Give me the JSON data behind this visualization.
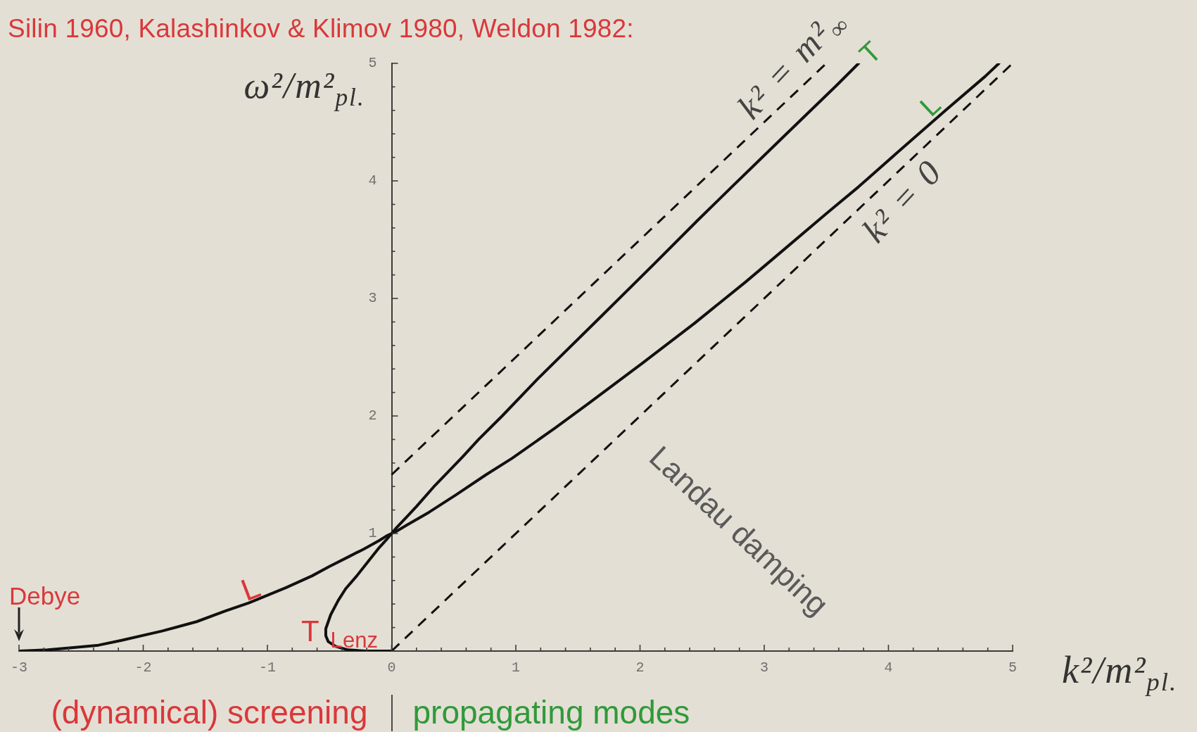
{
  "chart_data": {
    "type": "line",
    "title": "Silin 1960, Kalashinkov & Klimov 1980, Weldon 1982:",
    "xlabel": "k²/m²$_{pl.}$",
    "ylabel": "ω²/m²$_{pl.}$",
    "xlim": [
      -3,
      5
    ],
    "ylim": [
      0,
      5
    ],
    "xticks": [
      -3,
      {
        "value": -2.8,
        "label": null
      },
      {
        "value": -2.6,
        "label": null
      },
      {
        "value": -2.4,
        "label": null
      },
      {
        "value": -2.2,
        "label": null
      },
      -2,
      {
        "value": -1.8,
        "label": null
      },
      {
        "value": -1.6,
        "label": null
      },
      {
        "value": -1.4,
        "label": null
      },
      {
        "value": -1.2,
        "label": null
      },
      -1,
      {
        "value": -0.8,
        "label": null
      },
      {
        "value": -0.6,
        "label": null
      },
      {
        "value": -0.4,
        "label": null
      },
      {
        "value": -0.2,
        "label": null
      },
      0,
      {
        "value": 0.2,
        "label": null
      },
      {
        "value": 0.4,
        "label": null
      },
      {
        "value": 0.6,
        "label": null
      },
      {
        "value": 0.8,
        "label": null
      },
      1,
      {
        "value": 1.2,
        "label": null
      },
      {
        "value": 1.4,
        "label": null
      },
      {
        "value": 1.6,
        "label": null
      },
      {
        "value": 1.8,
        "label": null
      },
      2,
      {
        "value": 2.2,
        "label": null
      },
      {
        "value": 2.4,
        "label": null
      },
      {
        "value": 2.6,
        "label": null
      },
      {
        "value": 2.8,
        "label": null
      },
      3,
      {
        "value": 3.2,
        "label": null
      },
      {
        "value": 3.4,
        "label": null
      },
      {
        "value": 3.6,
        "label": null
      },
      {
        "value": 3.8,
        "label": null
      },
      4,
      {
        "value": 4.2,
        "label": null
      },
      {
        "value": 4.4,
        "label": null
      },
      {
        "value": 4.6,
        "label": null
      },
      {
        "value": 4.8,
        "label": null
      },
      5
    ],
    "yticks": [
      {
        "value": 0,
        "label": null
      },
      {
        "value": 0.2,
        "label": null
      },
      {
        "value": 0.4,
        "label": null
      },
      {
        "value": 0.6,
        "label": null
      },
      {
        "value": 0.8,
        "label": null
      },
      1,
      {
        "value": 1.2,
        "label": null
      },
      {
        "value": 1.4,
        "label": null
      },
      {
        "value": 1.6,
        "label": null
      },
      {
        "value": 1.8,
        "label": null
      },
      2,
      {
        "value": 2.2,
        "label": null
      },
      {
        "value": 2.4,
        "label": null
      },
      {
        "value": 2.6,
        "label": null
      },
      {
        "value": 2.8,
        "label": null
      },
      3,
      {
        "value": 3.2,
        "label": null
      },
      {
        "value": 3.4,
        "label": null
      },
      {
        "value": 3.6,
        "label": null
      },
      {
        "value": 3.8,
        "label": null
      },
      4,
      {
        "value": 4.2,
        "label": null
      },
      {
        "value": 4.4,
        "label": null
      },
      {
        "value": 4.6,
        "label": null
      },
      {
        "value": 4.8,
        "label": null
      },
      5
    ],
    "series": [
      {
        "color": "#111111",
        "x": [
          -3,
          -2.77,
          -2.56,
          -2.36,
          -2.18,
          -1.85,
          -1.57,
          -1.34,
          -1.15,
          -0.85,
          -0.64,
          -0.5,
          -0.35,
          -0.22,
          -0.1,
          -0.04,
          0,
          0.04,
          0.12,
          0.3,
          0.52,
          0.76,
          0.97,
          1.32,
          1.59,
          2.02,
          2.44,
          2.85,
          3.13,
          3.51,
          3.76,
          4.06,
          4.46,
          4.78,
          4.89
        ],
        "values": [
          0,
          0.01,
          0.03,
          0.05,
          0.09,
          0.17,
          0.25,
          0.34,
          0.41,
          0.54,
          0.64,
          0.72,
          0.8,
          0.87,
          0.94,
          0.98,
          1,
          1.02,
          1.07,
          1.18,
          1.33,
          1.5,
          1.64,
          1.9,
          2.11,
          2.45,
          2.79,
          3.14,
          3.39,
          3.73,
          3.95,
          4.23,
          4.6,
          4.89,
          5
        ]
      },
      {
        "color": "#111111",
        "x": [
          0,
          -0.11,
          -0.21,
          -0.35,
          -0.45,
          -0.51,
          -0.53,
          -0.53,
          -0.51,
          -0.49,
          -0.43,
          -0.37,
          -0.28,
          -0.19,
          -0.1,
          -0.04,
          0,
          0.04,
          0.13,
          0.2,
          0.35,
          0.57,
          0.7,
          0.89,
          1.18,
          1.69,
          2.11,
          2.46,
          2.75,
          3.12,
          3.58,
          3.76
        ],
        "values": [
          0,
          0,
          0,
          0.01,
          0.04,
          0.08,
          0.13,
          0.19,
          0.25,
          0.31,
          0.43,
          0.53,
          0.64,
          0.76,
          0.88,
          0.95,
          1,
          1.05,
          1.15,
          1.23,
          1.41,
          1.65,
          1.8,
          2,
          2.32,
          2.85,
          3.29,
          3.66,
          3.96,
          4.34,
          4.81,
          5
        ]
      },
      {
        "color": "#111111",
        "line_style": "dashed",
        "x": [
          0,
          3.5
        ],
        "values": [
          1.5,
          5
        ]
      },
      {
        "color": "#111111",
        "line_style": "dashed",
        "x": [
          0,
          5
        ],
        "values": [
          0,
          5
        ]
      }
    ],
    "annotations": [
      {
        "text": "L",
        "x": -1.15,
        "y": 0.41
      },
      {
        "text": "T$_{Lenz}$",
        "x": -0.53,
        "y": 0.13
      },
      {
        "text": "T",
        "x": 3.76,
        "y": 5
      },
      {
        "text": "L",
        "x": 4.46,
        "y": 4.6
      },
      {
        "text": "k² = m²$_{∞}$",
        "x": 3.24,
        "y": 4.74
      },
      {
        "text": "k² = 0",
        "x": 4.11,
        "y": 4.11
      },
      "Landau damping",
      {
        "text": "Debye",
        "x": -3,
        "y": 0
      },
      "(dynamical) screening",
      "propagating modes"
    ]
  }
}
